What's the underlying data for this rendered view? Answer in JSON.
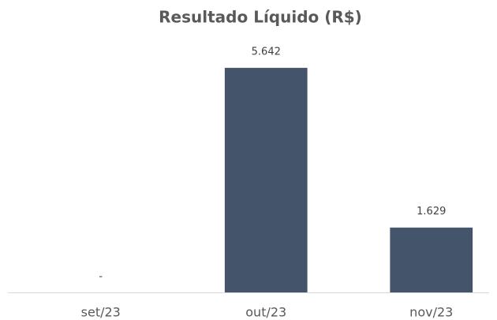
{
  "chart_data": {
    "type": "bar",
    "title": "Resultado Líquido (R$)",
    "categories": [
      "set/23",
      "out/23",
      "nov/23"
    ],
    "values": [
      0,
      5642,
      1629
    ],
    "value_labels": [
      "-",
      "5.642",
      "1.629"
    ],
    "color": "#44546a",
    "ylim": [
      0,
      6000
    ]
  }
}
